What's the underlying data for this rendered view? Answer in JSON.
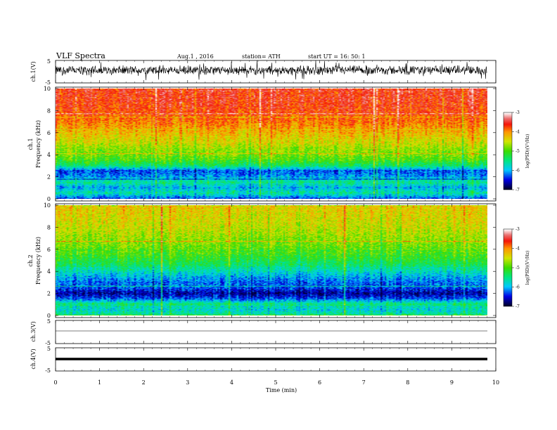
{
  "header": {
    "title": "VLF  Spectra",
    "date": "Aug.1   , 2016",
    "station": "station= ATH",
    "start": "start  UT  =    16: 50: 1"
  },
  "chart_data": [
    {
      "type": "line",
      "name": "ch1-waveform",
      "ylabel": "ch.1(V)",
      "ylim": [
        -5,
        5
      ],
      "yticks": [
        "5",
        "-5"
      ],
      "xlim": [
        0,
        10
      ],
      "x_extent": [
        0,
        9.8
      ],
      "noise": {
        "mean": 0.6,
        "amplitude": 2.4,
        "spike_amplitude": 4.5
      }
    },
    {
      "type": "heatmap",
      "name": "ch1-spectrogram",
      "ylabel": "ch.1\nFrequency  (kHz)",
      "ylim": [
        0,
        10
      ],
      "yticks": [
        "0",
        "2",
        "4",
        "6",
        "8",
        "10"
      ],
      "xlim": [
        0,
        10
      ],
      "x_extent": [
        0,
        9.8
      ],
      "colorbar": {
        "label": "log(PSD)(V²/Hz)",
        "range": [
          -7,
          -3
        ],
        "ticks": [
          "-3",
          "-4",
          "-5",
          "-6",
          "-7"
        ]
      },
      "log_psd_profile": [
        {
          "f": 0,
          "v": -6.3
        },
        {
          "f": 0.5,
          "v": -5.6
        },
        {
          "f": 1.0,
          "v": -6.0
        },
        {
          "f": 1.5,
          "v": -5.5
        },
        {
          "f": 2.0,
          "v": -6.1
        },
        {
          "f": 2.5,
          "v": -6.3
        },
        {
          "f": 3.0,
          "v": -5.4
        },
        {
          "f": 3.5,
          "v": -5.0
        },
        {
          "f": 4.0,
          "v": -4.8
        },
        {
          "f": 4.5,
          "v": -4.7
        },
        {
          "f": 5.0,
          "v": -4.5
        },
        {
          "f": 6.0,
          "v": -4.2
        },
        {
          "f": 7.0,
          "v": -3.9
        },
        {
          "f": 8.0,
          "v": -3.7
        },
        {
          "f": 9.0,
          "v": -3.6
        },
        {
          "f": 10.0,
          "v": -3.6
        }
      ]
    },
    {
      "type": "heatmap",
      "name": "ch2-spectrogram",
      "ylabel": "ch.2\nFrequency  (kHz)",
      "ylim": [
        0,
        10
      ],
      "yticks": [
        "0",
        "2",
        "4",
        "6",
        "8",
        "10"
      ],
      "xlim": [
        0,
        10
      ],
      "x_extent": [
        0,
        9.8
      ],
      "colorbar": {
        "label": "log(PSD)(V²/Hz)",
        "range": [
          -7,
          -3
        ],
        "ticks": [
          "-3",
          "-4",
          "-5",
          "-6",
          "-7"
        ]
      },
      "log_psd_profile": [
        {
          "f": 0,
          "v": -5.5
        },
        {
          "f": 0.5,
          "v": -5.8
        },
        {
          "f": 1.0,
          "v": -5.4
        },
        {
          "f": 1.5,
          "v": -6.3
        },
        {
          "f": 2.0,
          "v": -6.7
        },
        {
          "f": 2.5,
          "v": -6.3
        },
        {
          "f": 3.0,
          "v": -6.2
        },
        {
          "f": 3.5,
          "v": -6.0
        },
        {
          "f": 4.0,
          "v": -5.7
        },
        {
          "f": 4.5,
          "v": -5.4
        },
        {
          "f": 5.0,
          "v": -5.2
        },
        {
          "f": 6.0,
          "v": -4.9
        },
        {
          "f": 7.0,
          "v": -4.7
        },
        {
          "f": 8.0,
          "v": -4.5
        },
        {
          "f": 9.0,
          "v": -4.4
        },
        {
          "f": 10.0,
          "v": -4.3
        }
      ]
    },
    {
      "type": "line",
      "name": "ch3-waveform",
      "ylabel": "ch.3(V)",
      "ylim": [
        -5,
        5
      ],
      "yticks": [
        "5",
        "-5"
      ],
      "xlim": [
        0,
        10
      ],
      "value": 0
    },
    {
      "type": "line",
      "name": "ch4-waveform",
      "ylabel": "ch.4(V)",
      "ylim": [
        -5,
        5
      ],
      "yticks": [
        "5",
        "-5"
      ],
      "xlim": [
        0,
        10
      ],
      "value": 0,
      "thick": true
    }
  ],
  "xaxis": {
    "label": "Time  (min)",
    "ticks": [
      "0",
      "1",
      "2",
      "3",
      "4",
      "5",
      "6",
      "7",
      "8",
      "9",
      "10"
    ]
  }
}
